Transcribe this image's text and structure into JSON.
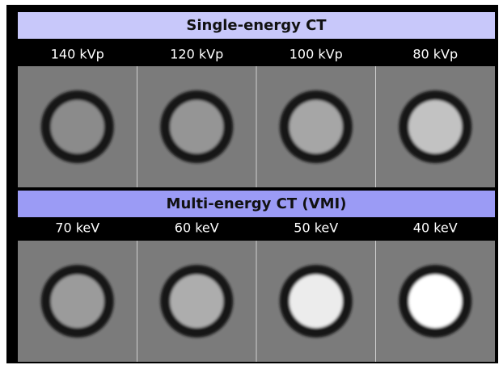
{
  "sections": [
    {
      "title": "Single-energy CT",
      "labels": [
        "140 kVp",
        "120 kVp",
        "100 kVp",
        "80 kVp"
      ]
    },
    {
      "title": "Multi-energy CT (VMI)",
      "labels": [
        "70 keV",
        "60 keV",
        "50 keV",
        "40 keV"
      ]
    }
  ]
}
